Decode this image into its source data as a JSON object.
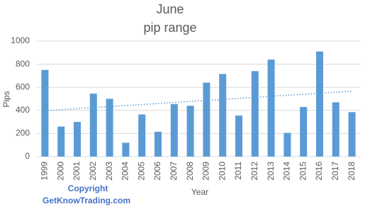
{
  "chart_data": {
    "type": "bar",
    "title": "June",
    "subtitle": "pip range",
    "x_label": "Year",
    "y_label": "Pips",
    "categories": [
      "1999",
      "2000",
      "2001",
      "2002",
      "2003",
      "2004",
      "2005",
      "2006",
      "2007",
      "2008",
      "2009",
      "2010",
      "2011",
      "2012",
      "2013",
      "2014",
      "2015",
      "2016",
      "2017",
      "2018"
    ],
    "values": [
      750,
      260,
      300,
      545,
      500,
      120,
      365,
      215,
      455,
      440,
      640,
      715,
      355,
      740,
      840,
      205,
      430,
      910,
      470,
      385
    ],
    "color": "#5b9bd5",
    "ylim": [
      0,
      1000
    ],
    "yticks": [
      0,
      200,
      400,
      600,
      800,
      1000
    ],
    "grid": true,
    "trendline": "linear",
    "annotations": [
      "Copyright",
      "GetKnowTrading.com"
    ]
  }
}
